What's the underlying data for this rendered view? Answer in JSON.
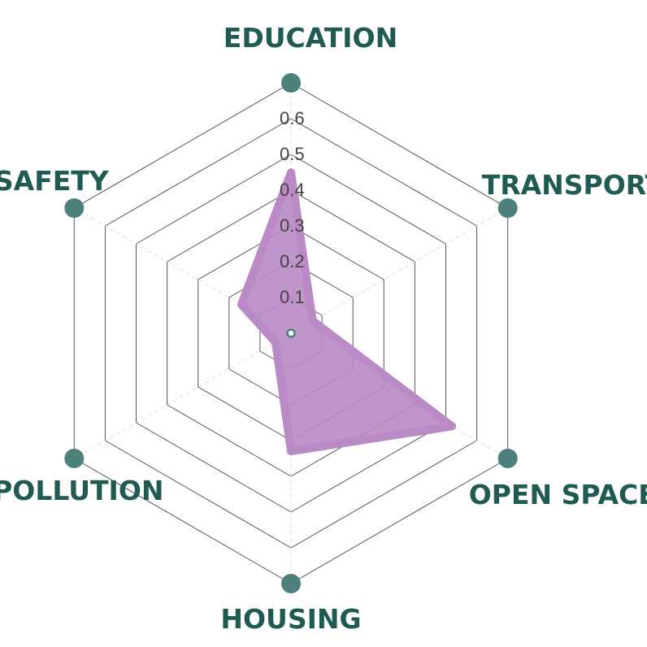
{
  "chart_data": {
    "type": "radar",
    "title": "",
    "axes": [
      "EDUCATION",
      "TRANSPORT",
      "OPEN SPACE",
      "HOUSING",
      "POLLUTION",
      "SAFETY"
    ],
    "series": [
      {
        "name": "",
        "values": [
          0.45,
          0.07,
          0.52,
          0.33,
          0.05,
          0.16
        ]
      }
    ],
    "rlim": [
      0,
      0.6
    ],
    "ticks": [
      "0.1",
      "0.2",
      "0.3",
      "0.4",
      "0.5",
      "0.6"
    ],
    "tick_values": [
      0.1,
      0.2,
      0.3,
      0.4,
      0.5,
      0.6
    ],
    "outer_ring_value": 0.7,
    "grid": true
  },
  "colors": {
    "label": "#1f5a53",
    "marker": "#4d807a",
    "fill": "#b98ac6",
    "tick": "#444444"
  }
}
